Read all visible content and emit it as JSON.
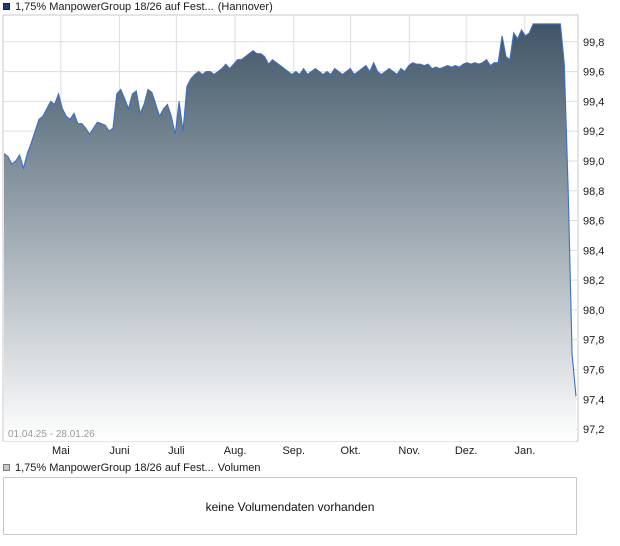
{
  "price_legend": {
    "label": "1,75% ManpowerGroup 18/26 auf Fest...",
    "exchange": "(Hannover)"
  },
  "volume_legend": {
    "label": "1,75% ManpowerGroup 18/26 auf Fest...",
    "suffix": "Volumen"
  },
  "date_range_label": "01.04.25 - 28.01.26",
  "volume_message": "keine Volumendaten vorhanden",
  "colors": {
    "line": "#3b6fc8",
    "fill_top": "#3f5566",
    "fill_bottom": "#ffffff",
    "grid": "#dedede"
  },
  "chart_data": {
    "type": "area",
    "series": [
      {
        "values": [
          99.05,
          99.03,
          98.98,
          99.0,
          99.04,
          98.95,
          99.05,
          99.12,
          99.2,
          99.28,
          99.3,
          99.35,
          99.4,
          99.38,
          99.45,
          99.35,
          99.3,
          99.28,
          99.32,
          99.25,
          99.25,
          99.22,
          99.18,
          99.22,
          99.26,
          99.25,
          99.24,
          99.2,
          99.22,
          99.45,
          99.48,
          99.42,
          99.35,
          99.45,
          99.47,
          99.32,
          99.38,
          99.48,
          99.46,
          99.38,
          99.3,
          99.35,
          99.38,
          99.3,
          99.18,
          99.4,
          99.2,
          99.5,
          99.55,
          99.58,
          99.6,
          99.58,
          99.6,
          99.6,
          99.58,
          99.6,
          99.62,
          99.65,
          99.62,
          99.65,
          99.68,
          99.68,
          99.7,
          99.72,
          99.74,
          99.72,
          99.72,
          99.7,
          99.65,
          99.68,
          99.66,
          99.64,
          99.62,
          99.6,
          99.58,
          99.6,
          99.58,
          99.62,
          99.58,
          99.6,
          99.62,
          99.6,
          99.58,
          99.6,
          99.58,
          99.62,
          99.6,
          99.58,
          99.6,
          99.62,
          99.58,
          99.6,
          99.62,
          99.64,
          99.6,
          99.66,
          99.6,
          99.58,
          99.6,
          99.62,
          99.6,
          99.58,
          99.62,
          99.6,
          99.64,
          99.66,
          99.65,
          99.65,
          99.64,
          99.65,
          99.62,
          99.63,
          99.62,
          99.63,
          99.64,
          99.63,
          99.64,
          99.63,
          99.65,
          99.66,
          99.65,
          99.66,
          99.65,
          99.66,
          99.68,
          99.64,
          99.66,
          99.66,
          99.84,
          99.7,
          99.68,
          99.86,
          99.82,
          99.88,
          99.84,
          99.86,
          99.92,
          99.92,
          99.92,
          99.92,
          99.92,
          99.92,
          99.92,
          99.92,
          99.65,
          98.8,
          97.7,
          97.42
        ]
      }
    ],
    "x_range": [
      "2025-04-01",
      "2026-01-28"
    ],
    "month_labels": [
      "Mai",
      "Juni",
      "Juli",
      "Aug.",
      "Sep.",
      "Okt.",
      "Nov.",
      "Dez.",
      "Jan."
    ],
    "month_ticks": [
      "2025-05-01",
      "2025-06-01",
      "2025-07-01",
      "2025-08-01",
      "2025-09-01",
      "2025-10-01",
      "2025-11-01",
      "2025-12-01",
      "2026-01-01"
    ],
    "y_ticks": [
      "99,8",
      "99,6",
      "99,4",
      "99,2",
      "99,0",
      "98,8",
      "98,6",
      "98,4",
      "98,2",
      "98,0",
      "97,8",
      "97,6",
      "97,4",
      "97,2"
    ],
    "ylim": [
      97.12,
      99.98
    ],
    "grid": true
  }
}
